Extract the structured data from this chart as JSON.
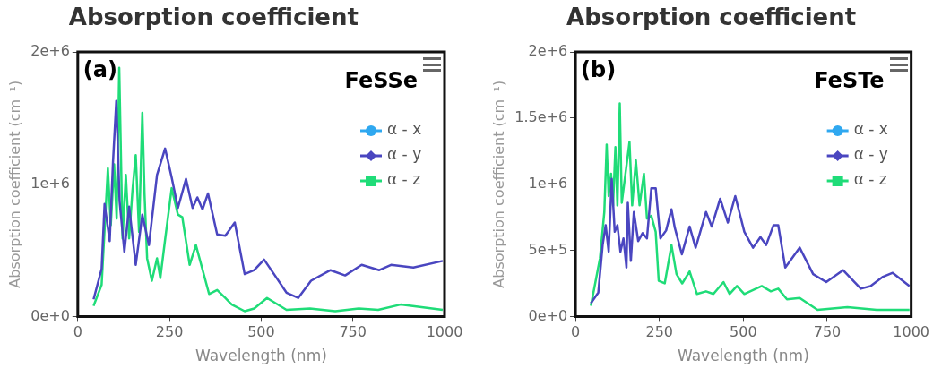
{
  "chart_data": [
    {
      "type": "line",
      "title": "Absorption coefficient",
      "xlabel": "Wavelength (nm)",
      "ylabel": "Absorption coefficient (cm⁻¹)",
      "annotations": [
        "(a)",
        "FeSSe"
      ],
      "xlim": [
        0,
        1000
      ],
      "xticks": [
        0,
        250,
        500,
        750,
        1000
      ],
      "ylim": [
        0,
        2000000
      ],
      "yticks": [
        {
          "value": 0,
          "label": "0e+0"
        },
        {
          "value": 1000000,
          "label": "1e+6"
        },
        {
          "value": 2000000,
          "label": "2e+6"
        }
      ],
      "grid": false,
      "legend": "top right",
      "line_style": "solid",
      "series": [
        {
          "name": "α - x",
          "color": "#2fa8f0"
        },
        {
          "name": "α - y",
          "color": "#4a46c0",
          "x": [
            43,
            65,
            73,
            87,
            96,
            105,
            114,
            127,
            140,
            158,
            176,
            194,
            216,
            238,
            256,
            273,
            295,
            313,
            326,
            340,
            355,
            380,
            402,
            428,
            455,
            481,
            508,
            535,
            569,
            601,
            636,
            689,
            729,
            774,
            822,
            854,
            915,
            995
          ],
          "values": [
            130000,
            360000,
            850000,
            570000,
            1170000,
            1630000,
            870000,
            490000,
            830000,
            390000,
            770000,
            540000,
            1070000,
            1270000,
            1050000,
            820000,
            1040000,
            820000,
            900000,
            810000,
            930000,
            620000,
            610000,
            710000,
            320000,
            350000,
            430000,
            320000,
            180000,
            140000,
            270000,
            350000,
            310000,
            390000,
            350000,
            390000,
            370000,
            420000
          ]
        },
        {
          "name": "α - z",
          "color": "#1fdc78",
          "x": [
            43,
            65,
            82,
            90,
            99,
            106,
            113,
            122,
            131,
            140,
            149,
            158,
            167,
            176,
            182,
            189,
            202,
            216,
            225,
            238,
            256,
            273,
            285,
            305,
            322,
            358,
            380,
            402,
            420,
            455,
            481,
            516,
            569,
            633,
            702,
            766,
            819,
            880,
            995
          ],
          "values": [
            80000,
            240000,
            1120000,
            690000,
            1150000,
            740000,
            1880000,
            590000,
            1070000,
            590000,
            950000,
            1220000,
            640000,
            1540000,
            920000,
            440000,
            270000,
            440000,
            290000,
            580000,
            970000,
            770000,
            750000,
            390000,
            540000,
            170000,
            200000,
            140000,
            90000,
            40000,
            60000,
            140000,
            50000,
            60000,
            40000,
            60000,
            50000,
            90000,
            50000
          ]
        }
      ]
    },
    {
      "type": "line",
      "title": "Absorption coefficient",
      "xlabel": "Wavelength (nm)",
      "ylabel": "Absorption coefficient (cm⁻¹)",
      "annotations": [
        "(b)",
        "FeSTe"
      ],
      "xlim": [
        0,
        1000
      ],
      "xticks": [
        0,
        250,
        500,
        750,
        1000
      ],
      "ylim": [
        0,
        2000000
      ],
      "yticks": [
        {
          "value": 0,
          "label": "0e+0"
        },
        {
          "value": 500000,
          "label": "5e+5"
        },
        {
          "value": 1000000,
          "label": "1e+6"
        },
        {
          "value": 1500000,
          "label": "1.5e+6"
        },
        {
          "value": 2000000,
          "label": "2e+6"
        }
      ],
      "grid": false,
      "legend": "top right",
      "line_style": "solid",
      "series": [
        {
          "name": "α - x",
          "color": "#2fa8f0"
        },
        {
          "name": "α - y",
          "color": "#4a46c0",
          "x": [
            46,
            68,
            81,
            90,
            99,
            108,
            117,
            125,
            134,
            143,
            152,
            156,
            165,
            174,
            187,
            200,
            213,
            226,
            239,
            253,
            270,
            286,
            296,
            317,
            340,
            358,
            389,
            406,
            431,
            454,
            476,
            503,
            529,
            551,
            568,
            590,
            604,
            625,
            668,
            708,
            747,
            797,
            850,
            879,
            916,
            945,
            995
          ],
          "values": [
            100000,
            180000,
            540000,
            690000,
            490000,
            1040000,
            640000,
            690000,
            490000,
            590000,
            370000,
            860000,
            420000,
            790000,
            570000,
            630000,
            590000,
            970000,
            970000,
            590000,
            650000,
            810000,
            670000,
            470000,
            680000,
            520000,
            790000,
            680000,
            890000,
            710000,
            910000,
            640000,
            520000,
            600000,
            540000,
            690000,
            690000,
            370000,
            520000,
            320000,
            260000,
            350000,
            210000,
            230000,
            300000,
            330000,
            230000
          ]
        },
        {
          "name": "α - z",
          "color": "#1fdc78",
          "x": [
            46,
            73,
            86,
            93,
            99,
            106,
            112,
            119,
            125,
            132,
            138,
            147,
            161,
            169,
            180,
            191,
            204,
            213,
            226,
            239,
            248,
            266,
            286,
            301,
            318,
            340,
            362,
            389,
            411,
            441,
            459,
            481,
            503,
            529,
            555,
            582,
            604,
            630,
            668,
            721,
            810,
            897,
            995
          ],
          "values": [
            80000,
            440000,
            790000,
            1300000,
            910000,
            1080000,
            840000,
            1280000,
            840000,
            1610000,
            860000,
            1040000,
            1320000,
            840000,
            1180000,
            840000,
            1080000,
            740000,
            760000,
            640000,
            270000,
            250000,
            540000,
            320000,
            250000,
            340000,
            170000,
            190000,
            170000,
            260000,
            170000,
            230000,
            170000,
            200000,
            230000,
            190000,
            210000,
            130000,
            140000,
            50000,
            70000,
            50000,
            50000
          ]
        }
      ]
    }
  ]
}
